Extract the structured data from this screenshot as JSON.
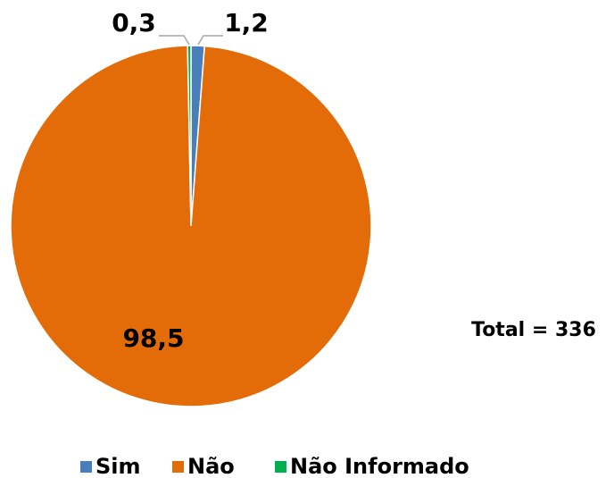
{
  "chart_data": {
    "type": "pie",
    "categories": [
      "Sim",
      "Não",
      "Não Informado"
    ],
    "values": [
      1.2,
      98.5,
      0.3
    ],
    "value_labels": [
      "1,2",
      "98,5",
      "0,3"
    ],
    "colors": [
      "#4a7ebb",
      "#e36c09",
      "#00b050"
    ],
    "annotation": "Total = 336",
    "legend": "bottom"
  }
}
